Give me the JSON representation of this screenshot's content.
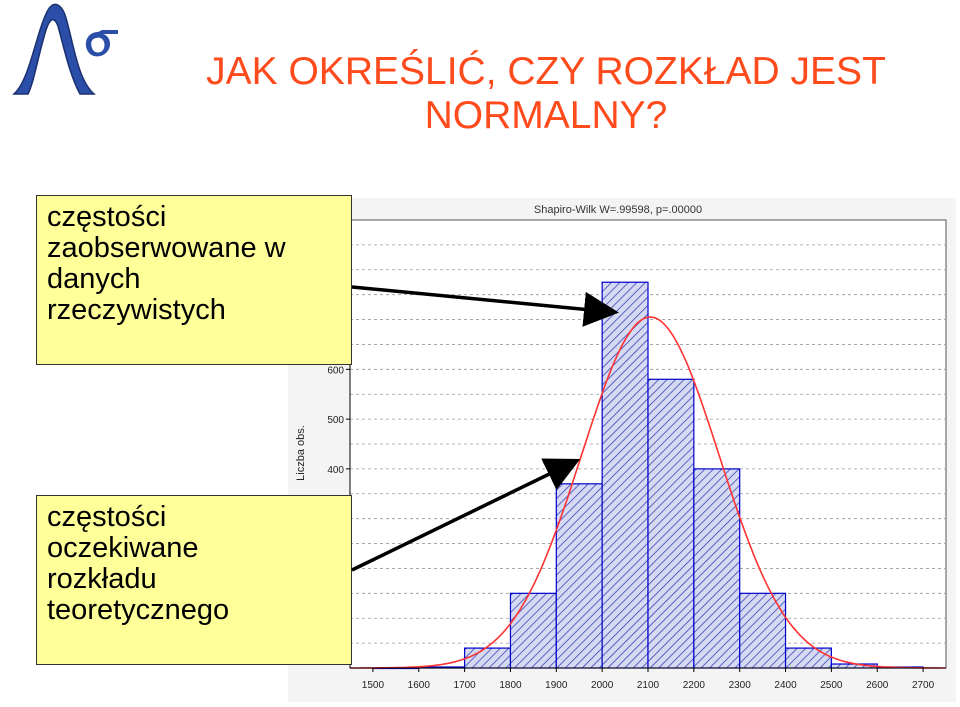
{
  "slide": {
    "title": "JAK OKREŚLIĆ, CZY ROZKŁAD JEST NORMALNY?",
    "title_color": "#ff4a1c"
  },
  "callouts": {
    "observed": [
      "częstości",
      "zaobserwowane w",
      "danych",
      "rzeczywistych"
    ],
    "expected": [
      "częstości",
      "oczekiwane",
      "rozkładu",
      "teoretycznego"
    ],
    "background": "#ffff99"
  },
  "logo": {
    "icon": "lambda-sigma-logo-icon",
    "color": "#2b4fa8"
  },
  "chart_data": {
    "type": "bar",
    "title": "Shapiro-Wilk W=.99598, p=.00000",
    "ylabel": "Liczba obs.",
    "xlabel": "",
    "bin_edges": [
      1500,
      1600,
      1700,
      1800,
      1900,
      2000,
      2100,
      2200,
      2300,
      2400,
      2500,
      2600,
      2700
    ],
    "values": [
      0,
      2,
      40,
      150,
      370,
      775,
      580,
      400,
      150,
      40,
      8,
      2
    ],
    "expected_curve": {
      "type": "normal",
      "mean": 2105,
      "sd": 150,
      "peak": 705,
      "color": "#ff3333"
    },
    "yticks": [
      400,
      500,
      600
    ],
    "ylim": [
      0,
      900
    ],
    "xlim": [
      1450,
      2750
    ],
    "grid": true,
    "bar_fill": "#c8ccee",
    "bar_stroke": "#0000cc"
  }
}
